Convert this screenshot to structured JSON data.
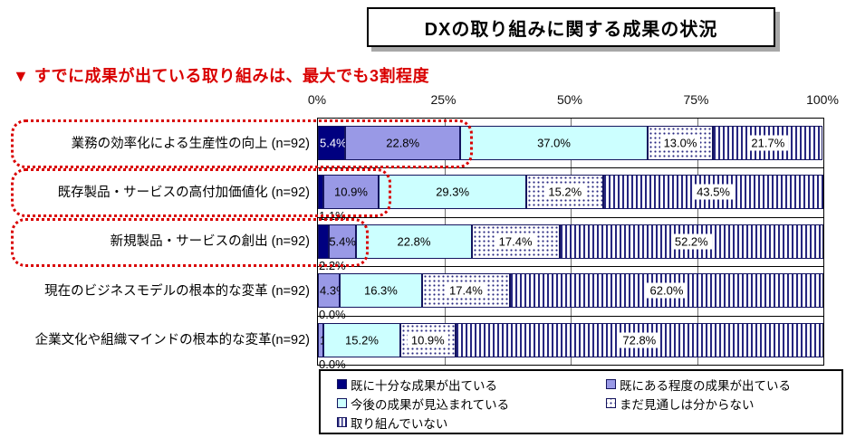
{
  "header": {
    "title": "DXの取り組みに関する成果の状況"
  },
  "subtitle": "▼ すでに成果が出ている取り組みは、最大でも3割程度",
  "colors": {
    "navy": "#000080",
    "purple": "#9999E6",
    "cyan": "#CCFFFF",
    "pattern_ink": "#26267F",
    "accent_red": "#D90000",
    "title_shadow": "#A8A8A8"
  },
  "axis_ticks": [
    "0%",
    "25%",
    "50%",
    "75%",
    "100%"
  ],
  "legend_items": [
    {
      "label": "既に十分な成果が出ている",
      "swatch": "navy"
    },
    {
      "label": "既にある程度の成果が出ている",
      "swatch": "purple"
    },
    {
      "label": "今後の成果が見込まれている",
      "swatch": "cyan"
    },
    {
      "label": "まだ見通しは分からない",
      "swatch": "dots"
    },
    {
      "label": "取り組んでいない",
      "swatch": "stripes"
    }
  ],
  "chart_data": {
    "type": "bar",
    "orientation": "horizontal",
    "stacked": true,
    "unit": "%",
    "xlim": [
      0,
      100
    ],
    "x_ticks": [
      0,
      25,
      50,
      75,
      100
    ],
    "grid": true,
    "legend_position": "bottom",
    "categories": [
      "業務の効率化による生産性の向上 (n=92)",
      "既存製品・サービスの高付加価値化 (n=92)",
      "新規製品・サービスの創出 (n=92)",
      "現在のビジネスモデルの根本的な変革 (n=92)",
      "企業文化や組織マインドの根本的な変革(n=92)"
    ],
    "series": [
      {
        "name": "既に十分な成果が出ている",
        "style": "navy",
        "values": [
          5.4,
          1.1,
          2.2,
          0.0,
          0.0
        ]
      },
      {
        "name": "既にある程度の成果が出ている",
        "style": "purple",
        "values": [
          22.8,
          10.9,
          5.4,
          4.3,
          1.1
        ]
      },
      {
        "name": "今後の成果が見込まれている",
        "style": "cyan",
        "values": [
          37.0,
          29.3,
          22.8,
          16.3,
          15.2
        ]
      },
      {
        "name": "まだ見通しは分からない",
        "style": "dots",
        "values": [
          13.0,
          15.2,
          17.4,
          17.4,
          10.9
        ]
      },
      {
        "name": "取り組んでいない",
        "style": "stripes",
        "values": [
          21.7,
          43.5,
          52.2,
          62.0,
          72.8
        ]
      }
    ],
    "annotations": {
      "highlighted_rows": [
        0,
        1,
        2
      ],
      "highlight_style": "red-dotted-rounded-box"
    }
  }
}
